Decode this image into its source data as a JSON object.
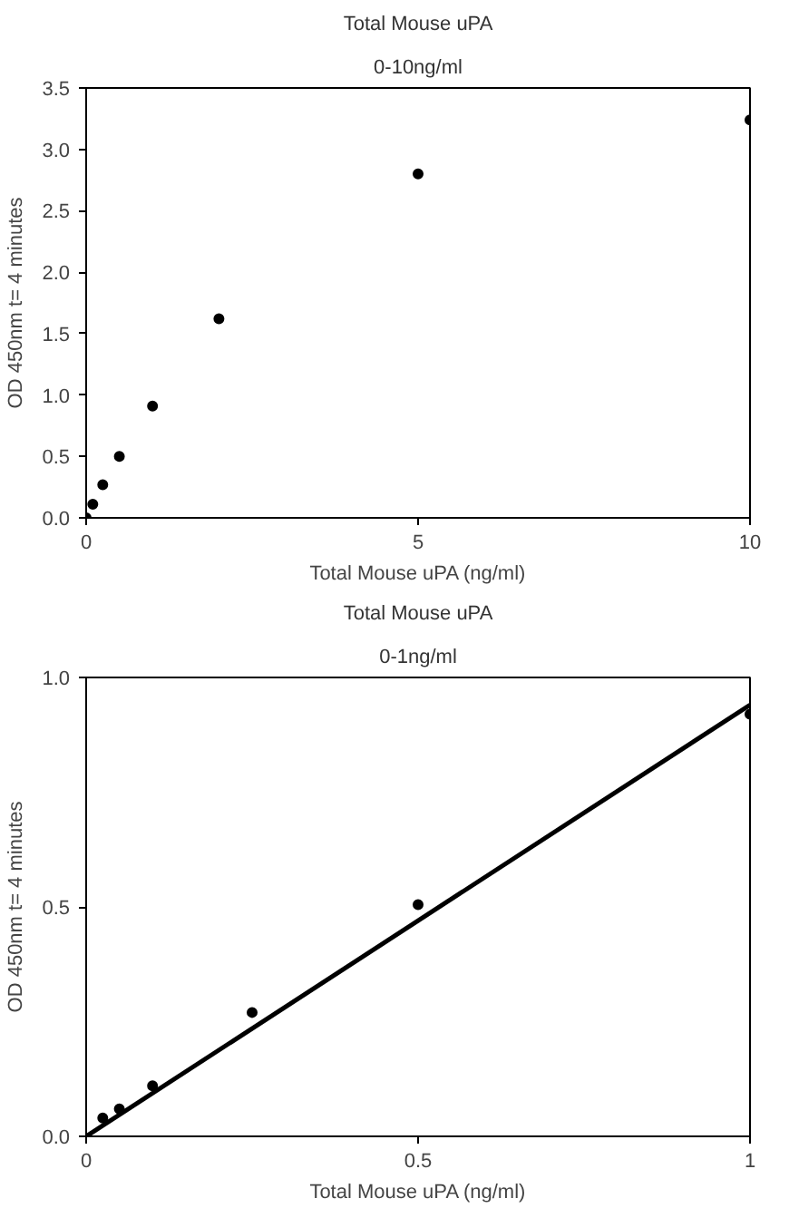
{
  "chart_data": [
    {
      "type": "scatter",
      "title": "Total Mouse uPA",
      "subtitle": "0-10ng/ml",
      "xlabel": "Total Mouse uPA (ng/ml)",
      "ylabel": "OD 450nm t= 4 minutes",
      "xlim": [
        0,
        10
      ],
      "ylim": [
        0,
        3.5
      ],
      "xticks": [
        0,
        5,
        10
      ],
      "yticks": [
        {
          "value": 0,
          "label": "0.0"
        },
        {
          "value": 0.5,
          "label": "0.5"
        },
        {
          "value": 1,
          "label": "1.0"
        },
        {
          "value": 1.5,
          "label": "1.5"
        },
        {
          "value": 2,
          "label": "2.0"
        },
        {
          "value": 2.5,
          "label": "2.5"
        },
        {
          "value": 3,
          "label": "3.0"
        },
        {
          "value": 3.5,
          "label": "3.5"
        }
      ],
      "grid": false,
      "series": [
        {
          "color": "#000000",
          "marker": "circle",
          "x": [
            0,
            0.1,
            0.25,
            0.5,
            1,
            2,
            5,
            10
          ],
          "values": [
            0,
            0.11,
            0.27,
            0.5,
            0.91,
            1.62,
            2.8,
            3.24
          ]
        }
      ]
    },
    {
      "type": "scatter",
      "title": "Total Mouse uPA",
      "subtitle": "0-1ng/ml",
      "xlabel": "Total Mouse uPA (ng/ml)",
      "ylabel": "OD 450nm t= 4 minutes",
      "xlim": [
        0,
        1
      ],
      "ylim": [
        0,
        1
      ],
      "xticks": [
        0,
        0.5,
        1
      ],
      "yticks": [
        {
          "value": 0,
          "label": "0.0"
        },
        {
          "value": 0.5,
          "label": "0.5"
        },
        {
          "value": 1,
          "label": "1.0"
        }
      ],
      "grid": false,
      "series": [
        {
          "color": "#000000",
          "marker": "circle",
          "x": [
            0.025,
            0.05,
            0.1,
            0.25,
            0.5,
            1
          ],
          "values": [
            0.04,
            0.06,
            0.11,
            0.27,
            0.505,
            0.92
          ]
        },
        {
          "type": "line",
          "color": "#000000",
          "x": [
            0,
            1
          ],
          "values": [
            0,
            0.94
          ]
        }
      ]
    }
  ]
}
